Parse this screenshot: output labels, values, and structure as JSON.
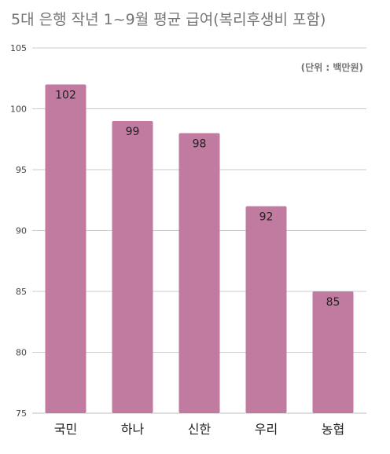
{
  "title": "5대 은행 작년 1~9월 평균 급여(복리후생비 포함)",
  "unit_note": "(단위 : 백만원)",
  "colors": {
    "bar": "#c27ba0",
    "grid": "#cccccc",
    "axis_text": "#444444",
    "label_text": "#222222"
  },
  "chart_data": {
    "type": "bar",
    "title": "5대 은행 작년 1~9월 평균 급여(복리후생비 포함)",
    "categories": [
      "국민",
      "하나",
      "신한",
      "우리",
      "농협"
    ],
    "values": [
      102,
      99,
      98,
      92,
      85
    ],
    "data_labels": [
      "102",
      "99",
      "98",
      "92",
      "85"
    ],
    "xlabel": "",
    "ylabel": "",
    "ylim": [
      75,
      105
    ],
    "yticks": [
      75,
      80,
      85,
      90,
      95,
      100,
      105
    ],
    "grid": true,
    "legend": "none"
  }
}
